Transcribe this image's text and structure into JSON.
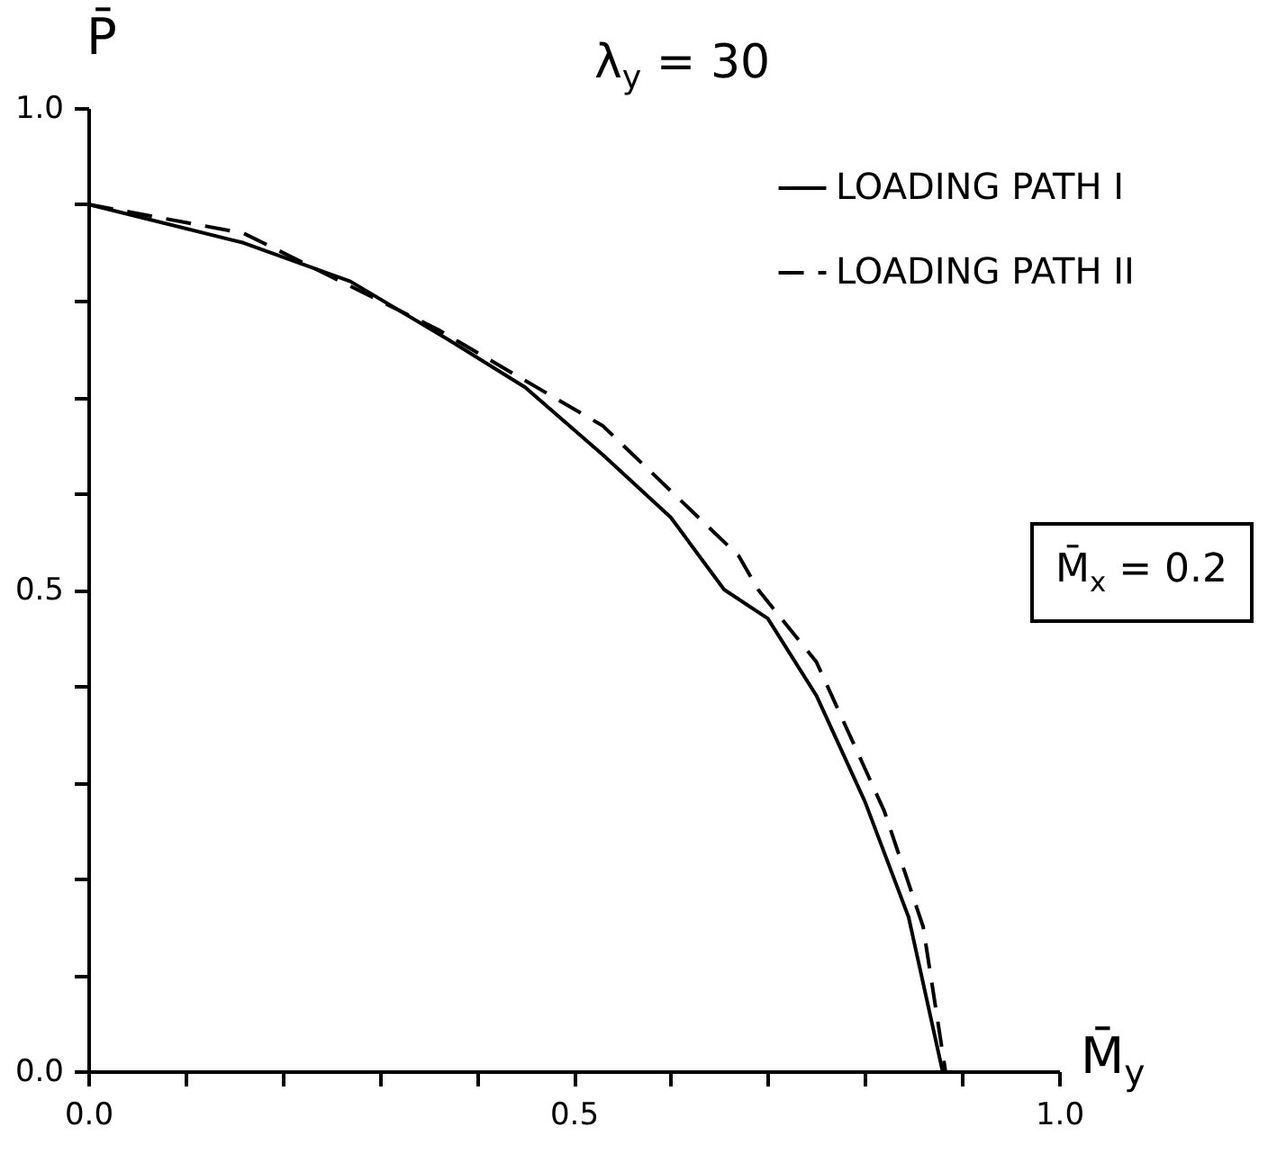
{
  "chart_data": {
    "type": "line",
    "title": "λ$_{y}$ = 30",
    "xlabel": "M̄$_{y}$",
    "ylabel": "P̄",
    "annotations": [
      "M̄$_{x}$ = 0.2"
    ],
    "xlim": [
      0,
      1
    ],
    "ylim": [
      0,
      1
    ],
    "xticks": [
      {
        "value": 0,
        "label": "0.0"
      },
      {
        "value": 0.1,
        "label": null
      },
      {
        "value": 0.2,
        "label": null
      },
      {
        "value": 0.3,
        "label": null
      },
      {
        "value": 0.4,
        "label": null
      },
      {
        "value": 0.5,
        "label": "0.5"
      },
      {
        "value": 0.6,
        "label": null
      },
      {
        "value": 0.7,
        "label": null
      },
      {
        "value": 0.8,
        "label": null
      },
      {
        "value": 0.9,
        "label": null
      },
      {
        "value": 1,
        "label": "1.0"
      }
    ],
    "yticks": [
      {
        "value": 0,
        "label": "0.0"
      },
      {
        "value": 0.1,
        "label": null
      },
      {
        "value": 0.2,
        "label": null
      },
      {
        "value": 0.3,
        "label": null
      },
      {
        "value": 0.4,
        "label": null
      },
      {
        "value": 0.5,
        "label": "0.5"
      },
      {
        "value": 0.6,
        "label": null
      },
      {
        "value": 0.7,
        "label": null
      },
      {
        "value": 0.8,
        "label": null
      },
      {
        "value": 0.9,
        "label": null
      },
      {
        "value": 1,
        "label": "1.0"
      }
    ],
    "legend": "top right",
    "series": [
      {
        "name": "LOADING PATH I",
        "color": "#000000",
        "line_style": "solid",
        "x": [
          0,
          0.16,
          0.27,
          0.37,
          0.45,
          0.53,
          0.6,
          0.655,
          0.7,
          0.75,
          0.8,
          0.845,
          0.88
        ],
        "values": [
          0.9,
          0.86,
          0.82,
          0.76,
          0.71,
          0.64,
          0.575,
          0.5,
          0.47,
          0.39,
          0.28,
          0.16,
          0
        ]
      },
      {
        "name": "LOADING PATH II",
        "color": "#000000",
        "line_style": "dashed",
        "x": [
          0,
          0.16,
          0.36,
          0.53,
          0.67,
          0.69,
          0.75,
          0.82,
          0.86,
          0.883
        ],
        "values": [
          0.9,
          0.87,
          0.77,
          0.67,
          0.535,
          0.5,
          0.425,
          0.27,
          0.15,
          0
        ]
      }
    ]
  }
}
